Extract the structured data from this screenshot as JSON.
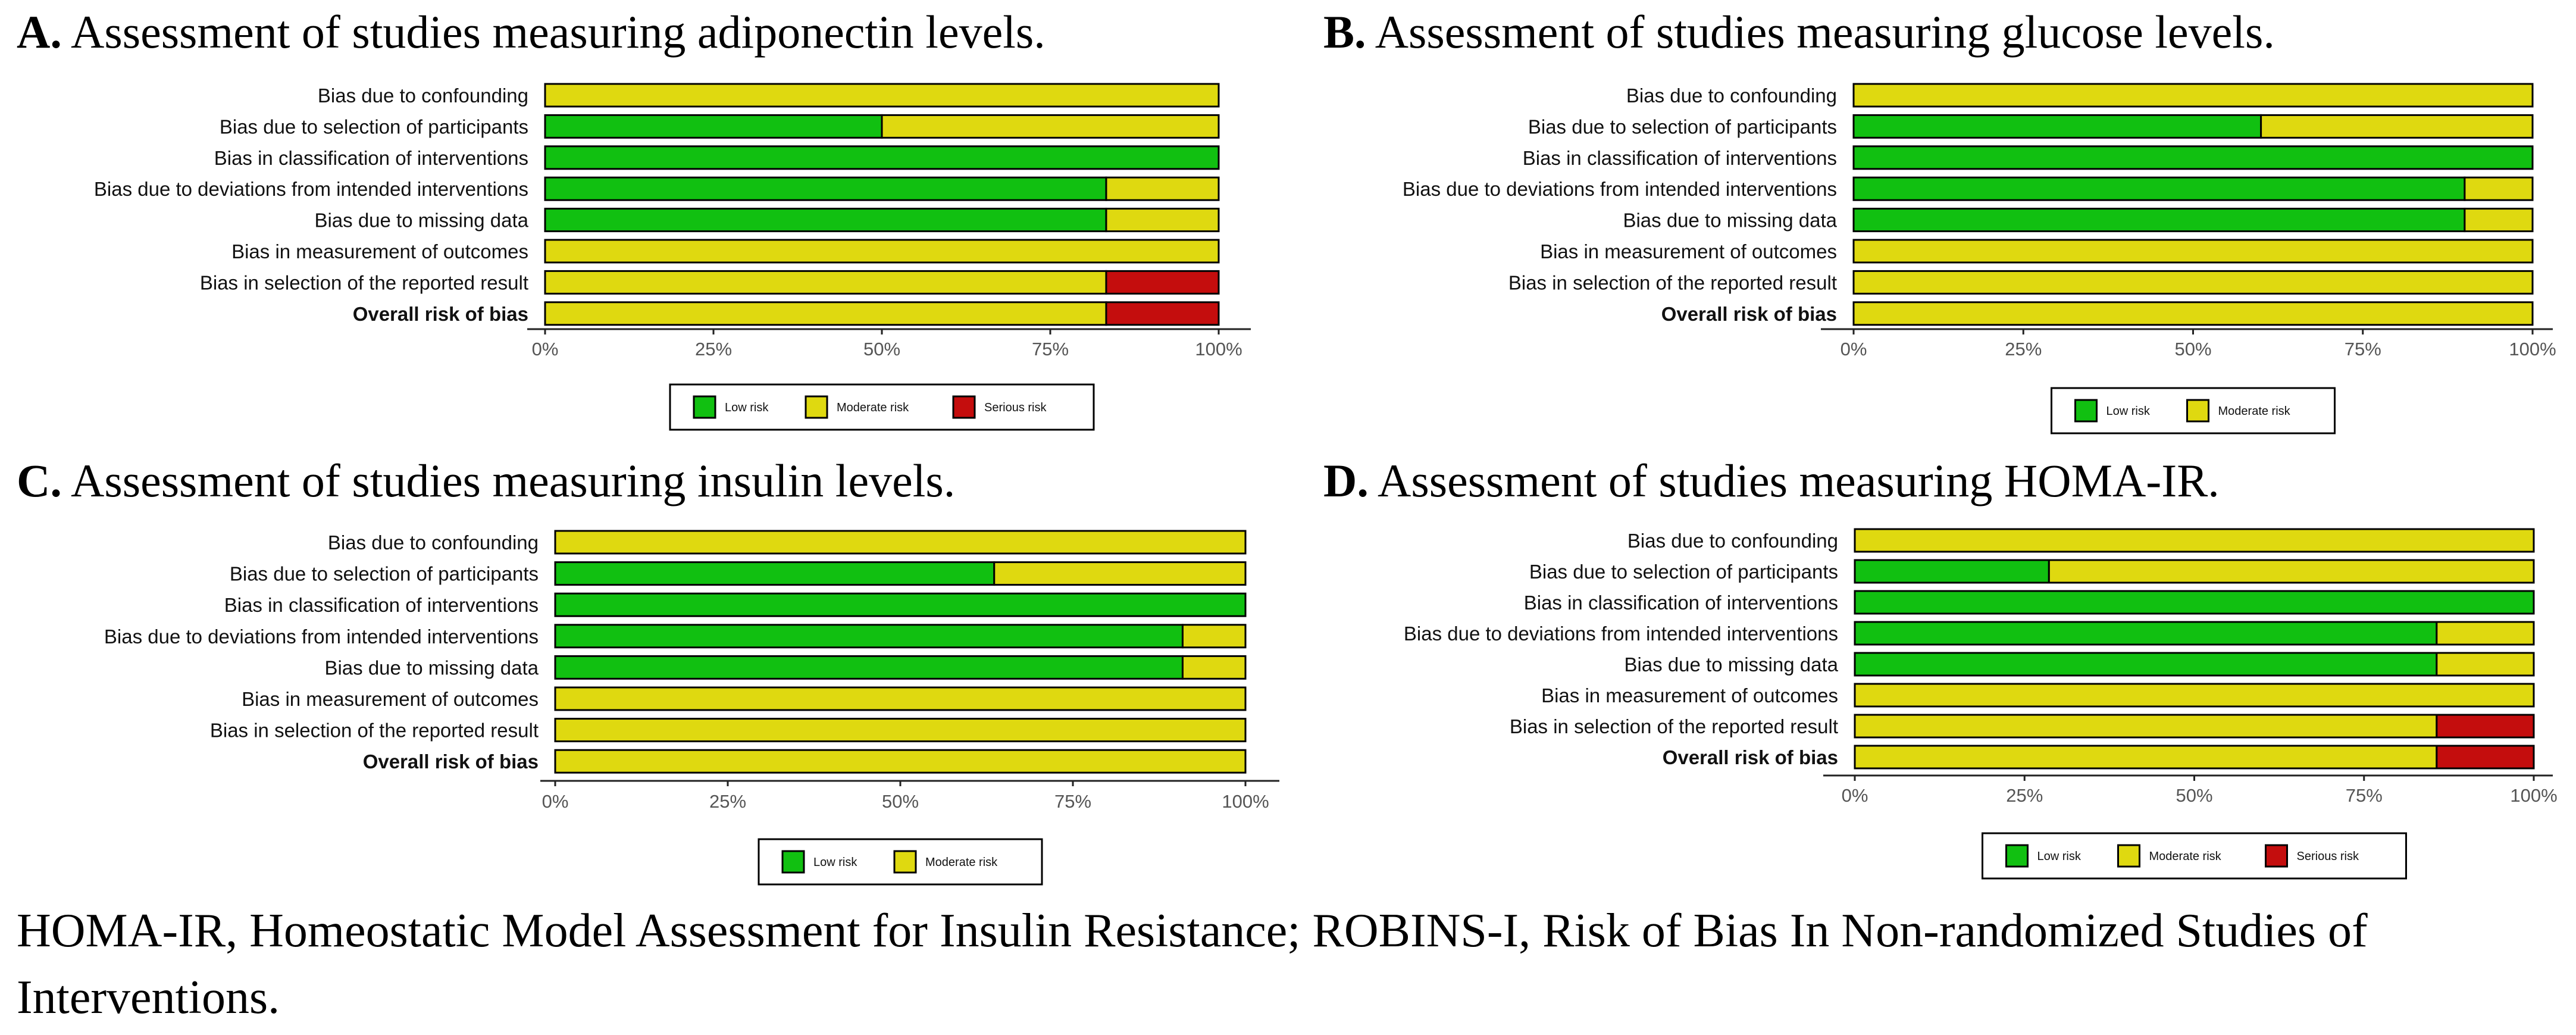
{
  "colors": {
    "low": "#11c011",
    "moderate": "#dfd910",
    "serious": "#c40d0d",
    "axis": "#222222",
    "tick": "#555555"
  },
  "chart_data": [
    {
      "type": "bar",
      "orientation": "horizontal",
      "stacked": true,
      "letter": "A.",
      "title": "Assessment of studies measuring adiponectin levels.",
      "categories": [
        "Bias due to confounding",
        "Bias due to selection of participants",
        "Bias in classification of interventions",
        "Bias due to deviations from intended interventions",
        "Bias due to missing data",
        "Bias in measurement of outcomes",
        "Bias in selection of the reported result",
        "Overall risk of bias"
      ],
      "bold_category": "Overall risk of bias",
      "series": [
        {
          "name": "Low risk",
          "key": "low",
          "values": [
            0,
            50,
            100,
            83.3,
            83.3,
            0,
            0,
            0
          ]
        },
        {
          "name": "Moderate risk",
          "key": "moderate",
          "values": [
            100,
            50,
            0,
            16.7,
            16.7,
            100,
            83.3,
            83.3
          ]
        },
        {
          "name": "Serious risk",
          "key": "serious",
          "values": [
            0,
            0,
            0,
            0,
            0,
            0,
            16.7,
            16.7
          ]
        }
      ],
      "xlim": [
        0,
        100
      ],
      "xticks": [
        "0%",
        "25%",
        "50%",
        "75%",
        "100%"
      ],
      "legend": [
        "Low risk",
        "Moderate risk",
        "Serious risk"
      ],
      "legend_position": "bottom-center"
    },
    {
      "type": "bar",
      "orientation": "horizontal",
      "stacked": true,
      "letter": "B.",
      "title": "Assessment of studies measuring glucose levels.",
      "categories": [
        "Bias due to confounding",
        "Bias due to selection of participants",
        "Bias in classification of interventions",
        "Bias due to deviations from intended interventions",
        "Bias due to missing data",
        "Bias in measurement of outcomes",
        "Bias in selection of the reported result",
        "Overall risk of bias"
      ],
      "bold_category": "Overall risk of bias",
      "series": [
        {
          "name": "Low risk",
          "key": "low",
          "values": [
            0,
            60,
            100,
            90,
            90,
            0,
            0,
            0
          ]
        },
        {
          "name": "Moderate risk",
          "key": "moderate",
          "values": [
            100,
            40,
            0,
            10,
            10,
            100,
            100,
            100
          ]
        }
      ],
      "xlim": [
        0,
        100
      ],
      "xticks": [
        "0%",
        "25%",
        "50%",
        "75%",
        "100%"
      ],
      "legend": [
        "Low risk",
        "Moderate risk"
      ],
      "legend_position": "bottom-center"
    },
    {
      "type": "bar",
      "orientation": "horizontal",
      "stacked": true,
      "letter": "C.",
      "title": "Assessment of studies measuring insulin levels.",
      "categories": [
        "Bias due to confounding",
        "Bias due to selection of participants",
        "Bias in classification of interventions",
        "Bias due to deviations from intended interventions",
        "Bias due to missing data",
        "Bias in measurement of outcomes",
        "Bias in selection of the reported result",
        "Overall risk of bias"
      ],
      "bold_category": "Overall risk of bias",
      "series": [
        {
          "name": "Low risk",
          "key": "low",
          "values": [
            0,
            63.6,
            100,
            90.9,
            90.9,
            0,
            0,
            0
          ]
        },
        {
          "name": "Moderate risk",
          "key": "moderate",
          "values": [
            100,
            36.4,
            0,
            9.1,
            9.1,
            100,
            100,
            100
          ]
        }
      ],
      "xlim": [
        0,
        100
      ],
      "xticks": [
        "0%",
        "25%",
        "50%",
        "75%",
        "100%"
      ],
      "legend": [
        "Low risk",
        "Moderate risk"
      ],
      "legend_position": "bottom-center"
    },
    {
      "type": "bar",
      "orientation": "horizontal",
      "stacked": true,
      "letter": "D.",
      "title": "Assessment of studies measuring HOMA-IR.",
      "categories": [
        "Bias due to confounding",
        "Bias due to selection of participants",
        "Bias in classification of interventions",
        "Bias due to deviations from intended interventions",
        "Bias due to missing data",
        "Bias in measurement of outcomes",
        "Bias in selection of the reported result",
        "Overall risk of bias"
      ],
      "bold_category": "Overall risk of bias",
      "series": [
        {
          "name": "Low risk",
          "key": "low",
          "values": [
            0,
            28.6,
            100,
            85.7,
            85.7,
            0,
            0,
            0
          ]
        },
        {
          "name": "Moderate risk",
          "key": "moderate",
          "values": [
            100,
            71.4,
            0,
            14.3,
            14.3,
            100,
            85.7,
            85.7
          ]
        },
        {
          "name": "Serious risk",
          "key": "serious",
          "values": [
            0,
            0,
            0,
            0,
            0,
            0,
            14.3,
            14.3
          ]
        }
      ],
      "xlim": [
        0,
        100
      ],
      "xticks": [
        "0%",
        "25%",
        "50%",
        "75%",
        "100%"
      ],
      "legend": [
        "Low risk",
        "Moderate risk",
        "Serious risk"
      ],
      "legend_position": "bottom-center"
    }
  ],
  "caption": "HOMA-IR, Homeostatic Model Assessment for Insulin Resistance; ROBINS-I, Risk of Bias In Non-randomized Studies of Interventions."
}
